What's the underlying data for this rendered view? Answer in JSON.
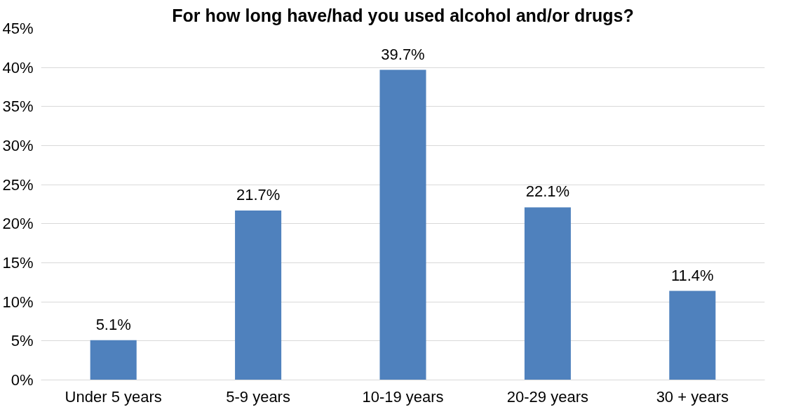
{
  "chart_data": {
    "type": "bar",
    "title": "For how long have/had you used alcohol and/or drugs?",
    "categories": [
      "Under 5 years",
      "5-9 years",
      "10-19 years",
      "20-29 years",
      "30 + years"
    ],
    "values": [
      5.1,
      21.7,
      39.7,
      22.1,
      11.4
    ],
    "value_labels": [
      "5.1%",
      "21.7%",
      "39.7%",
      "22.1%",
      "11.4%"
    ],
    "color": "#4f81bd",
    "ylim": [
      0,
      45
    ],
    "yticks": [
      {
        "value": 0,
        "label": "0%"
      },
      {
        "value": 5,
        "label": "5%"
      },
      {
        "value": 10,
        "label": "10%"
      },
      {
        "value": 15,
        "label": "15%"
      },
      {
        "value": 20,
        "label": "20%"
      },
      {
        "value": 25,
        "label": "25%"
      },
      {
        "value": 30,
        "label": "30%"
      },
      {
        "value": 35,
        "label": "35%"
      },
      {
        "value": 40,
        "label": "40%"
      },
      {
        "value": 45,
        "label": "45%"
      }
    ],
    "grid": "y"
  }
}
